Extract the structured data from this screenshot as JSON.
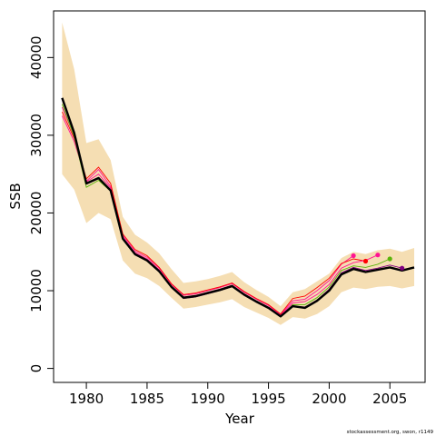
{
  "chart_data": {
    "type": "line",
    "xlabel": "Year",
    "ylabel": "SSB",
    "xlim": [
      1977.3,
      2007.9
    ],
    "ylim": [
      -1800,
      46000
    ],
    "x_ticks": [
      1980,
      1985,
      1990,
      1995,
      2000,
      2005
    ],
    "y_ticks": [
      0,
      10000,
      20000,
      30000,
      40000
    ],
    "credit": "stockassessment.org, swon, r1149",
    "band": {
      "color": "#f5deb3",
      "x": [
        1978,
        1979,
        1980,
        1981,
        1982,
        1983,
        1984,
        1985,
        1986,
        1987,
        1988,
        1989,
        1990,
        1991,
        1992,
        1993,
        1994,
        1995,
        1996,
        1997,
        1998,
        1999,
        2000,
        2001,
        2002,
        2003,
        2004,
        2005,
        2006,
        2007
      ],
      "upper": [
        44500,
        38500,
        29000,
        29500,
        26800,
        19500,
        17200,
        16200,
        14800,
        12800,
        11000,
        11200,
        11500,
        11900,
        12400,
        11100,
        10100,
        9200,
        8000,
        9800,
        10200,
        11200,
        12200,
        14200,
        15000,
        14700,
        15200,
        15400,
        15000,
        15500
      ],
      "lower": [
        25000,
        23000,
        18700,
        20000,
        19200,
        13900,
        12200,
        11600,
        10600,
        9100,
        7700,
        7900,
        8200,
        8500,
        8900,
        7900,
        7200,
        6500,
        5600,
        6600,
        6400,
        7000,
        8000,
        9800,
        10400,
        10200,
        10500,
        10600,
        10300,
        10600
      ]
    },
    "main": {
      "color": "#000000",
      "x": [
        1978,
        1979,
        1980,
        1981,
        1982,
        1983,
        1984,
        1985,
        1986,
        1987,
        1988,
        1989,
        1990,
        1991,
        1992,
        1993,
        1994,
        1995,
        1996,
        1997,
        1998,
        1999,
        2000,
        2001,
        2002,
        2003,
        2004,
        2005,
        2006,
        2007
      ],
      "values": [
        34800,
        30300,
        23800,
        24500,
        22900,
        16700,
        14700,
        13900,
        12500,
        10500,
        9100,
        9300,
        9700,
        10100,
        10600,
        9500,
        8600,
        7800,
        6700,
        8000,
        7800,
        8700,
        10000,
        12100,
        12800,
        12400,
        12700,
        13000,
        12600,
        13000
      ]
    },
    "retro_runs": [
      {
        "color": "#ff1493",
        "x": [
          1978,
          1979,
          1980,
          1981,
          1982,
          1983,
          1984,
          1985,
          1986,
          1987,
          1988,
          1989,
          1990,
          1991,
          1992,
          1993,
          1994,
          1995,
          1996,
          1997,
          1998,
          1999,
          2000,
          2001,
          2002
        ],
        "values": [
          32500,
          29200,
          24100,
          25600,
          23400,
          17100,
          15100,
          14300,
          12900,
          10800,
          9400,
          9600,
          10000,
          10400,
          10900,
          9800,
          8900,
          8100,
          6900,
          8700,
          8900,
          10000,
          11300,
          13400,
          14500
        ]
      },
      {
        "color": "#ff0000",
        "x": [
          1978,
          1979,
          1980,
          1981,
          1982,
          1983,
          1984,
          1985,
          1986,
          1987,
          1988,
          1989,
          1990,
          1991,
          1992,
          1993,
          1994,
          1995,
          1996,
          1997,
          1998,
          1999,
          2000,
          2001,
          2002,
          2003
        ],
        "values": [
          33000,
          29600,
          24400,
          25900,
          23800,
          17300,
          15300,
          14500,
          13000,
          10900,
          9500,
          9700,
          10100,
          10500,
          11000,
          9900,
          9000,
          8200,
          7000,
          9000,
          9300,
          10400,
          11600,
          13500,
          14100,
          13800
        ]
      },
      {
        "color": "#ff1493",
        "x": [
          1978,
          1979,
          1980,
          1981,
          1982,
          1983,
          1984,
          1985,
          1986,
          1987,
          1988,
          1989,
          1990,
          1991,
          1992,
          1993,
          1994,
          1995,
          1996,
          1997,
          1998,
          1999,
          2000,
          2001,
          2002,
          2003,
          2004
        ],
        "values": [
          33600,
          29900,
          24000,
          25000,
          23200,
          16900,
          14900,
          14100,
          12700,
          10600,
          9200,
          9400,
          9800,
          10200,
          10700,
          9600,
          8700,
          7900,
          6800,
          8400,
          8600,
          9500,
          10800,
          12900,
          13600,
          13900,
          14600
        ]
      },
      {
        "color": "#5ab40a",
        "x": [
          1978,
          1979,
          1980,
          1981,
          1982,
          1983,
          1984,
          1985,
          1986,
          1987,
          1988,
          1989,
          1990,
          1991,
          1992,
          1993,
          1994,
          1995,
          1996,
          1997,
          1998,
          1999,
          2000,
          2001,
          2002,
          2003,
          2004,
          2005
        ],
        "values": [
          34000,
          29800,
          23300,
          24200,
          22800,
          16600,
          14600,
          13800,
          12400,
          10400,
          9000,
          9200,
          9600,
          10000,
          10500,
          9400,
          8500,
          7700,
          6700,
          8200,
          8200,
          9100,
          10500,
          12600,
          13200,
          13000,
          13400,
          14100
        ]
      },
      {
        "color": "#800080",
        "x": [
          1978,
          1979,
          1980,
          1981,
          1982,
          1983,
          1984,
          1985,
          1986,
          1987,
          1988,
          1989,
          1990,
          1991,
          1992,
          1993,
          1994,
          1995,
          1996,
          1997,
          1998,
          1999,
          2000,
          2001,
          2002,
          2003,
          2004,
          2005,
          2006
        ],
        "values": [
          34600,
          30200,
          23700,
          24400,
          22800,
          16600,
          14600,
          13800,
          12400,
          10400,
          9000,
          9200,
          9600,
          10000,
          10500,
          9400,
          8500,
          7700,
          6600,
          8000,
          7900,
          8800,
          10200,
          12300,
          13000,
          12600,
          12900,
          13300,
          12900
        ]
      }
    ]
  }
}
